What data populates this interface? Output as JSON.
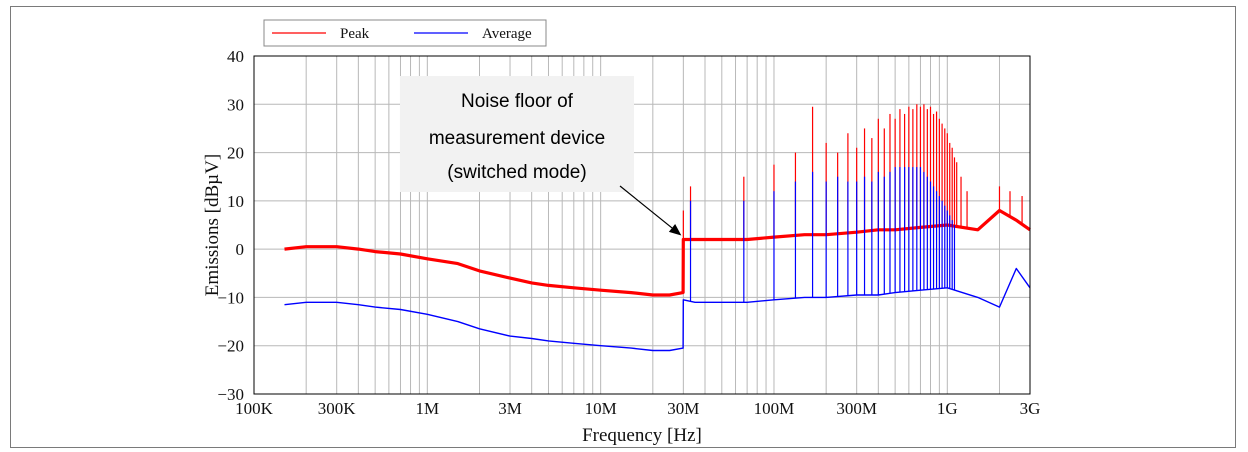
{
  "chart_data": {
    "type": "line",
    "xscale": "log",
    "xlabel": "Frequency [Hz]",
    "ylabel": "Emissions [dBµV]",
    "xlim": [
      100000,
      3000000000
    ],
    "ylim": [
      -30,
      40
    ],
    "grid": true,
    "legend_position": "top-left",
    "x_ticks": [
      {
        "value": 100000,
        "label": "100K"
      },
      {
        "value": 300000,
        "label": "300K"
      },
      {
        "value": 1000000,
        "label": "1M"
      },
      {
        "value": 3000000,
        "label": "3M"
      },
      {
        "value": 10000000,
        "label": "10M"
      },
      {
        "value": 30000000,
        "label": "30M"
      },
      {
        "value": 100000000,
        "label": "100M"
      },
      {
        "value": 300000000,
        "label": "300M"
      },
      {
        "value": 1000000000,
        "label": "1G"
      },
      {
        "value": 3000000000,
        "label": "3G"
      }
    ],
    "y_ticks": [
      40,
      30,
      20,
      10,
      0,
      -10,
      -20,
      -30
    ],
    "annotation": {
      "lines": [
        "Noise floor of",
        "measurement device",
        "(switched mode)"
      ],
      "points_to": {
        "x": 30000000,
        "y": 2
      }
    },
    "series": [
      {
        "name": "Peak",
        "color": "#ff0000",
        "x": [
          150000,
          200000,
          300000,
          400000,
          500000,
          700000,
          1000000,
          1500000,
          2000000,
          3000000,
          4000000,
          5000000,
          7000000,
          10000000,
          15000000,
          20000000,
          25000000,
          29900000,
          30000000,
          35000000,
          50000000,
          70000000,
          100000000,
          150000000,
          200000000,
          300000000,
          400000000,
          500000000,
          700000000,
          1000000000,
          1500000000,
          2000000000,
          2500000000,
          3000000000
        ],
        "y": [
          0,
          0.5,
          0.5,
          0,
          -0.5,
          -1,
          -2,
          -3,
          -4.5,
          -6,
          -7,
          -7.5,
          -8,
          -8.5,
          -9,
          -9.5,
          -9.5,
          -9,
          2,
          2,
          2,
          2,
          2.5,
          3,
          3,
          3.5,
          4,
          4,
          4.5,
          5,
          4,
          8,
          6,
          4
        ],
        "spikes": [
          {
            "x": 30000000,
            "y": 8
          },
          {
            "x": 33000000,
            "y": 13
          },
          {
            "x": 67000000,
            "y": 15
          },
          {
            "x": 100000000,
            "y": 17.5
          },
          {
            "x": 133000000,
            "y": 20
          },
          {
            "x": 167000000,
            "y": 29.5
          },
          {
            "x": 200000000,
            "y": 22
          },
          {
            "x": 233000000,
            "y": 20
          },
          {
            "x": 267000000,
            "y": 24
          },
          {
            "x": 300000000,
            "y": 21
          },
          {
            "x": 333000000,
            "y": 25
          },
          {
            "x": 367000000,
            "y": 23
          },
          {
            "x": 400000000,
            "y": 27
          },
          {
            "x": 433000000,
            "y": 25
          },
          {
            "x": 467000000,
            "y": 28
          },
          {
            "x": 500000000,
            "y": 27
          },
          {
            "x": 533000000,
            "y": 29
          },
          {
            "x": 567000000,
            "y": 28
          },
          {
            "x": 600000000,
            "y": 29.5
          },
          {
            "x": 633000000,
            "y": 29
          },
          {
            "x": 667000000,
            "y": 30
          },
          {
            "x": 700000000,
            "y": 29.5
          },
          {
            "x": 733000000,
            "y": 30
          },
          {
            "x": 767000000,
            "y": 29
          },
          {
            "x": 800000000,
            "y": 29.5
          },
          {
            "x": 833000000,
            "y": 28
          },
          {
            "x": 867000000,
            "y": 28.5
          },
          {
            "x": 900000000,
            "y": 27
          },
          {
            "x": 933000000,
            "y": 26
          },
          {
            "x": 967000000,
            "y": 25
          },
          {
            "x": 1000000000,
            "y": 24
          },
          {
            "x": 1033000000,
            "y": 22
          },
          {
            "x": 1067000000,
            "y": 21
          },
          {
            "x": 1100000000,
            "y": 19
          },
          {
            "x": 1133000000,
            "y": 18
          },
          {
            "x": 1200000000,
            "y": 15
          },
          {
            "x": 1300000000,
            "y": 12
          },
          {
            "x": 2000000000,
            "y": 13
          },
          {
            "x": 2300000000,
            "y": 12
          },
          {
            "x": 2700000000,
            "y": 11
          }
        ]
      },
      {
        "name": "Average",
        "color": "#0000ff",
        "x": [
          150000,
          200000,
          300000,
          400000,
          500000,
          700000,
          1000000,
          1500000,
          2000000,
          3000000,
          4000000,
          5000000,
          7000000,
          10000000,
          15000000,
          20000000,
          25000000,
          29900000,
          30000000,
          35000000,
          50000000,
          70000000,
          100000000,
          150000000,
          200000000,
          300000000,
          400000000,
          500000000,
          700000000,
          1000000000,
          1500000000,
          2000000000,
          2500000000,
          3000000000
        ],
        "y": [
          -11.5,
          -11,
          -11,
          -11.5,
          -12,
          -12.5,
          -13.5,
          -15,
          -16.5,
          -18,
          -18.5,
          -19,
          -19.5,
          -20,
          -20.5,
          -21,
          -21,
          -20.5,
          -10.5,
          -11,
          -11,
          -11,
          -10.5,
          -10,
          -10,
          -9.5,
          -9.5,
          -9,
          -8.5,
          -8,
          -10,
          -12,
          -4,
          -8
        ],
        "spikes": [
          {
            "x": 33000000,
            "y": 10
          },
          {
            "x": 67000000,
            "y": 10
          },
          {
            "x": 100000000,
            "y": 12
          },
          {
            "x": 133000000,
            "y": 14
          },
          {
            "x": 167000000,
            "y": 16
          },
          {
            "x": 200000000,
            "y": 14
          },
          {
            "x": 233000000,
            "y": 15
          },
          {
            "x": 267000000,
            "y": 14
          },
          {
            "x": 300000000,
            "y": 14
          },
          {
            "x": 333000000,
            "y": 15
          },
          {
            "x": 367000000,
            "y": 14
          },
          {
            "x": 400000000,
            "y": 16
          },
          {
            "x": 433000000,
            "y": 15
          },
          {
            "x": 467000000,
            "y": 16
          },
          {
            "x": 500000000,
            "y": 17
          },
          {
            "x": 533000000,
            "y": 17
          },
          {
            "x": 567000000,
            "y": 17
          },
          {
            "x": 600000000,
            "y": 17
          },
          {
            "x": 633000000,
            "y": 17
          },
          {
            "x": 667000000,
            "y": 17
          },
          {
            "x": 700000000,
            "y": 17
          },
          {
            "x": 733000000,
            "y": 16
          },
          {
            "x": 767000000,
            "y": 15
          },
          {
            "x": 800000000,
            "y": 14
          },
          {
            "x": 833000000,
            "y": 13
          },
          {
            "x": 867000000,
            "y": 12
          },
          {
            "x": 900000000,
            "y": 11
          },
          {
            "x": 933000000,
            "y": 10
          },
          {
            "x": 967000000,
            "y": 9
          },
          {
            "x": 1000000000,
            "y": 8
          },
          {
            "x": 1033000000,
            "y": 7
          },
          {
            "x": 1067000000,
            "y": 6
          },
          {
            "x": 1100000000,
            "y": 5
          }
        ]
      }
    ]
  }
}
